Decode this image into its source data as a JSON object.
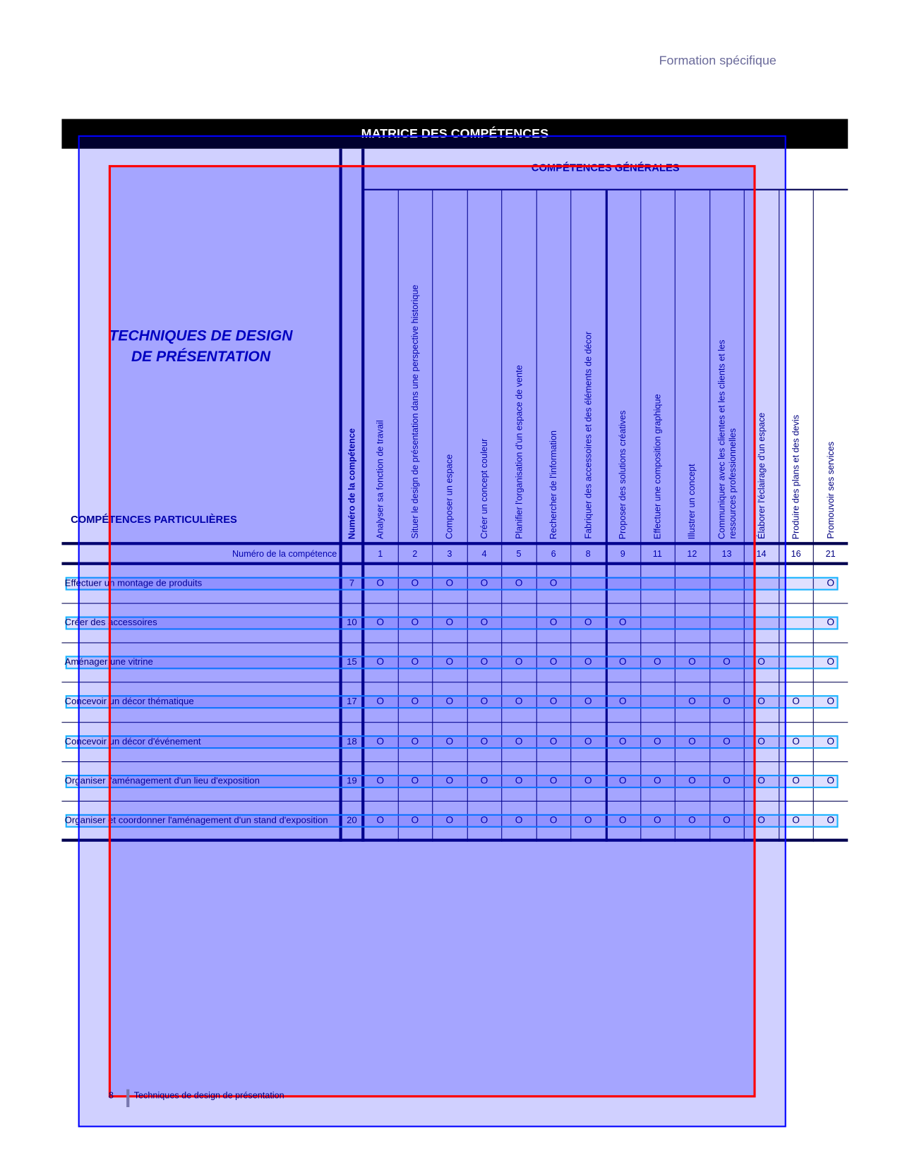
{
  "header": {
    "section": "Formation spécifique"
  },
  "matrix": {
    "title": "MATRICE DES COMPÉTENCES",
    "general_title": "COMPÉTENCES GÉNÉRALES",
    "program_title_line1": "TECHNIQUES DE DESIGN",
    "program_title_line2": "DE PRÉSENTATION",
    "particular_title": "COMPÉTENCES PARTICULIÈRES",
    "num_column_header": "Numéro de la compétence",
    "num_row_label": "Numéro de la compétence",
    "general_competencies": [
      {
        "number": "1",
        "lines": [
          "Analyser sa fonction de travail"
        ]
      },
      {
        "number": "2",
        "lines": [
          "Situer le design de présentation dans une perspective historique"
        ]
      },
      {
        "number": "3",
        "lines": [
          "Composer un espace"
        ]
      },
      {
        "number": "4",
        "lines": [
          "Créer un concept couleur"
        ]
      },
      {
        "number": "5",
        "lines": [
          "Planifier l'organisation d'un espace de vente"
        ]
      },
      {
        "number": "6",
        "lines": [
          "Rechercher de l'information"
        ]
      },
      {
        "number": "8",
        "lines": [
          "Fabriquer des accessoires et des éléments de décor"
        ]
      },
      {
        "number": "9",
        "lines": [
          "Proposer des solutions créatives"
        ]
      },
      {
        "number": "11",
        "lines": [
          "Effectuer une composition graphique"
        ]
      },
      {
        "number": "12",
        "lines": [
          "Illustrer un concept"
        ]
      },
      {
        "number": "13",
        "lines": [
          "Communiquer avec les clientes et les clients et les",
          "ressources professionnelles"
        ]
      },
      {
        "number": "14",
        "lines": [
          "Élaborer l'éclairage d'un espace"
        ]
      },
      {
        "number": "16",
        "lines": [
          "Produire des plans et des devis"
        ]
      },
      {
        "number": "21",
        "lines": [
          "Promouvoir ses services"
        ]
      }
    ],
    "mark_symbol": "O",
    "particular_competencies": [
      {
        "label": "Effectuer un montage de produits",
        "number": "7",
        "marks": [
          1,
          1,
          1,
          1,
          1,
          1,
          0,
          0,
          0,
          0,
          0,
          0,
          0,
          1
        ]
      },
      {
        "label": "Créer des accessoires",
        "number": "10",
        "marks": [
          1,
          1,
          1,
          1,
          0,
          1,
          1,
          1,
          0,
          0,
          0,
          0,
          0,
          1
        ]
      },
      {
        "label": "Aménager une vitrine",
        "number": "15",
        "marks": [
          1,
          1,
          1,
          1,
          1,
          1,
          1,
          1,
          1,
          1,
          1,
          1,
          0,
          1
        ]
      },
      {
        "label": "Concevoir un décor thématique",
        "number": "17",
        "marks": [
          1,
          1,
          1,
          1,
          1,
          1,
          1,
          1,
          0,
          1,
          1,
          1,
          1,
          1
        ]
      },
      {
        "label": "Concevoir un décor d'événement",
        "number": "18",
        "marks": [
          1,
          1,
          1,
          1,
          1,
          1,
          1,
          1,
          1,
          1,
          1,
          1,
          1,
          1
        ]
      },
      {
        "label": "Organiser l'aménagement d'un lieu d'exposition",
        "number": "19",
        "marks": [
          1,
          1,
          1,
          1,
          1,
          1,
          1,
          1,
          1,
          1,
          1,
          1,
          1,
          1
        ]
      },
      {
        "label": "Organiser et coordonner l'aménagement d'un stand d'exposition",
        "number": "20",
        "marks": [
          1,
          1,
          1,
          1,
          1,
          1,
          1,
          1,
          1,
          1,
          1,
          1,
          1,
          1
        ]
      }
    ]
  },
  "footer": {
    "page": "8",
    "text": "Techniques de design de présentation"
  },
  "colors": {
    "line": "#000050",
    "overlay_outer": "#0000ff",
    "overlay_inner": "#ff0000"
  }
}
